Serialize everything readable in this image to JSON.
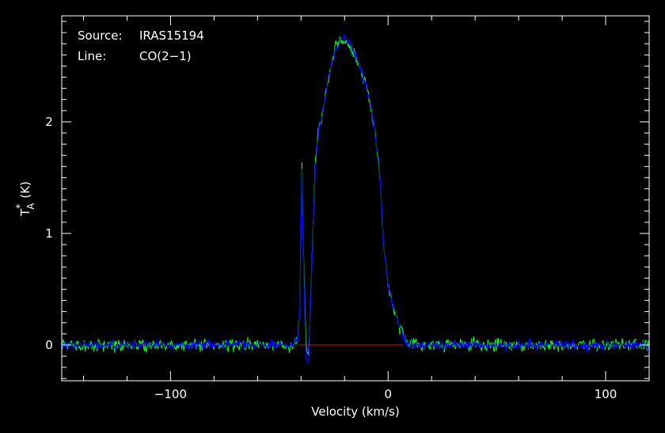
{
  "annotations": {
    "source_label": "Source:",
    "source_value": "IRAS15194",
    "line_label": "Line:",
    "line_value": "CO(2−1)"
  },
  "chart_data": {
    "type": "line",
    "xlabel": "Velocity (km/s)",
    "ylabel": "T*A (K)",
    "ylabel_parts": {
      "main": "T",
      "sub": "A",
      "sup": "*",
      "unit": "(K)"
    },
    "xlim": [
      -150,
      120
    ],
    "ylim": [
      -0.32,
      2.95
    ],
    "xticks": [
      -100,
      0,
      100
    ],
    "xtick_labels": [
      "−100",
      "0",
      "100"
    ],
    "yticks": [
      0,
      1,
      2
    ],
    "ytick_labels": [
      "0",
      "1",
      "2"
    ],
    "grid": false,
    "background": "#000000",
    "axis_color": "#ffffff",
    "baseline": {
      "x": [
        -41,
        7
      ],
      "y": 0,
      "color": "#ff0000"
    },
    "series": [
      {
        "color": "#00ff00",
        "noise": 0.05,
        "x": [
          -150,
          -45,
          -41.5,
          -40.5,
          -39.6,
          -39,
          -37.8,
          -36.5,
          -35.2,
          -33.5,
          -32,
          -30,
          -28,
          -26,
          -24,
          -22,
          -20,
          -18,
          -16,
          -14,
          -12,
          -10,
          -8,
          -6,
          -4,
          -2,
          0,
          2,
          4,
          5.5,
          7,
          8,
          9,
          10,
          120
        ],
        "y": [
          0,
          0,
          0.05,
          0.35,
          1.65,
          0.9,
          0.02,
          -0.1,
          0.65,
          1.6,
          1.95,
          2.1,
          2.35,
          2.52,
          2.68,
          2.74,
          2.73,
          2.68,
          2.62,
          2.55,
          2.45,
          2.32,
          2.15,
          1.9,
          1.6,
          0.9,
          0.55,
          0.35,
          0.25,
          0.15,
          0.08,
          0.05,
          0.02,
          0,
          0
        ]
      },
      {
        "color": "#0000ff",
        "noise": 0.04,
        "x": [
          -150,
          -45,
          -41.5,
          -40.5,
          -39.6,
          -39,
          -37.8,
          -36.5,
          -35.2,
          -33.5,
          -32,
          -30,
          -28,
          -26,
          -24,
          -22,
          -20,
          -18,
          -16,
          -14,
          -12,
          -10,
          -8,
          -6,
          -4,
          -2,
          0,
          2,
          4,
          5.5,
          7,
          8,
          9,
          10,
          120
        ],
        "y": [
          0,
          0,
          0.05,
          0.32,
          1.55,
          0.85,
          -0.12,
          -0.15,
          0.6,
          1.55,
          1.92,
          2.08,
          2.33,
          2.5,
          2.66,
          2.72,
          2.74,
          2.7,
          2.63,
          2.55,
          2.45,
          2.32,
          2.15,
          1.9,
          1.6,
          0.9,
          0.55,
          0.35,
          0.25,
          0.15,
          0.08,
          0.05,
          0.02,
          0,
          0
        ]
      }
    ]
  }
}
